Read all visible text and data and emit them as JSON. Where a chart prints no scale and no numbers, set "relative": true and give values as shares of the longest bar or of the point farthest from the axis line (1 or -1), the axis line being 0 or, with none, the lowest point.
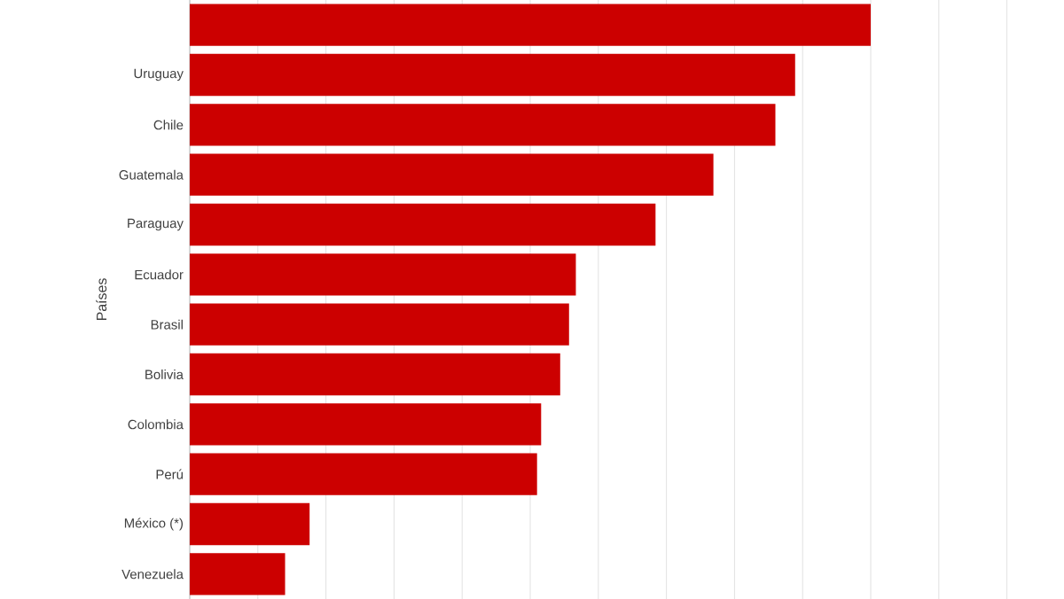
{
  "chart_data": {
    "type": "bar",
    "orientation": "horizontal",
    "relative": true,
    "ylabel": "Países",
    "categories": [
      null,
      "Uruguay",
      "Chile",
      "Guatemala",
      "Paraguay",
      "Ecuador",
      "Brasil",
      "Bolivia",
      "Colombia",
      "Perú",
      "México (*)",
      "Venezuela"
    ],
    "values": [
      1,
      0.889,
      0.86,
      0.769,
      0.684,
      0.567,
      0.557,
      0.544,
      0.516,
      0.51,
      0.176,
      0.14
    ],
    "color": "#cc0000",
    "grid": "x"
  }
}
